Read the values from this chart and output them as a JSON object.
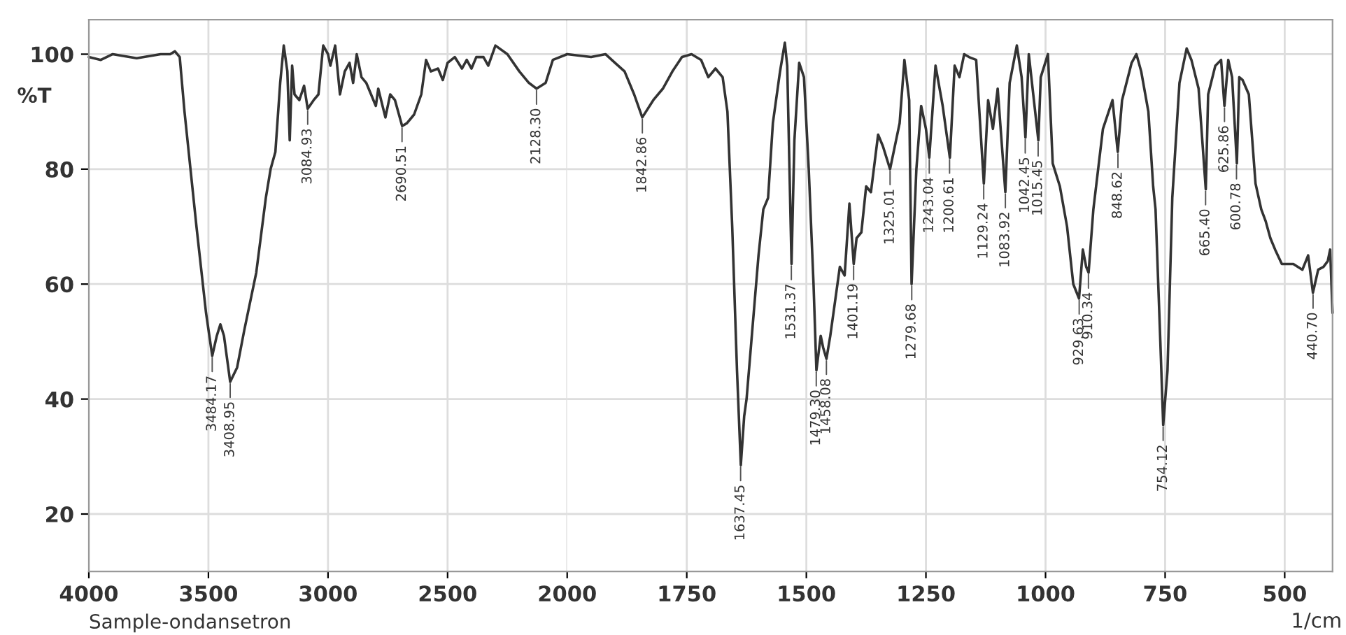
{
  "chart_data": [
    {
      "type": "line",
      "ylabel": "%T",
      "annotations": [
        "Sample-ondansetron",
        {
          "text": "3484.17",
          "x": 3484.17,
          "y": 47.5
        },
        {
          "text": "3408.95",
          "x": 3408.95,
          "y": 43
        },
        {
          "text": "3084.93",
          "x": 3084.93,
          "y": 90.5
        },
        {
          "text": "2690.51",
          "x": 2690.51,
          "y": 87.5
        },
        {
          "text": "2128.30",
          "x": 2128.3,
          "y": 94
        }
      ],
      "xlim": [
        4000,
        2000
      ],
      "ylim": [
        10,
        106
      ],
      "xticks": [
        4000,
        3500,
        3000,
        2500,
        2000
      ],
      "yticks": [
        20,
        40,
        60,
        80,
        100
      ],
      "grid": true,
      "line_style": "solid",
      "series": [
        {
          "color": "#333333",
          "x": [
            4000,
            3950,
            3900,
            3800,
            3700,
            3660,
            3640,
            3620,
            3600,
            3550,
            3510,
            3484,
            3465,
            3450,
            3435,
            3409,
            3380,
            3350,
            3300,
            3260,
            3240,
            3220,
            3200,
            3185,
            3170,
            3160,
            3150,
            3140,
            3120,
            3100,
            3085,
            3060,
            3040,
            3020,
            3000,
            2990,
            2970,
            2950,
            2930,
            2910,
            2895,
            2880,
            2860,
            2840,
            2820,
            2800,
            2790,
            2760,
            2740,
            2720,
            2690,
            2670,
            2640,
            2610,
            2590,
            2570,
            2540,
            2520,
            2500,
            2470,
            2440,
            2420,
            2400,
            2380,
            2350,
            2330,
            2300,
            2250,
            2200,
            2160,
            2128,
            2090,
            2060,
            2000
          ],
          "values": [
            99.5,
            99,
            100,
            99.3,
            100,
            100,
            100.5,
            99.5,
            90,
            70,
            55,
            47.5,
            51,
            53,
            51,
            43,
            45.5,
            52,
            62,
            75,
            80,
            83,
            95,
            101.5,
            97,
            85,
            98,
            93,
            92,
            94.5,
            90.5,
            92,
            93,
            101.5,
            100,
            98,
            101.5,
            93,
            97,
            98.5,
            95,
            100,
            96,
            95,
            93,
            91,
            94,
            89,
            93,
            92,
            87.5,
            88,
            89.5,
            93,
            99,
            97,
            97.5,
            95.5,
            98.5,
            99.5,
            97.5,
            99,
            97.5,
            99.5,
            99.5,
            98,
            101.5,
            100,
            97,
            95,
            94,
            95,
            99,
            100
          ]
        }
      ]
    },
    {
      "type": "line",
      "xlabel": "1/cm",
      "annotations": [
        {
          "text": "1842.86",
          "x": 1842.86,
          "y": 89
        },
        {
          "text": "1637.45",
          "x": 1637.45,
          "y": 28.5
        },
        {
          "text": "1531.37",
          "x": 1531.37,
          "y": 63.5
        },
        {
          "text": "1479.30",
          "x": 1479.3,
          "y": 45
        },
        {
          "text": "1458.08",
          "x": 1458.08,
          "y": 47
        },
        {
          "text": "1401.19",
          "x": 1401.19,
          "y": 63.5
        },
        {
          "text": "1325.01",
          "x": 1325.01,
          "y": 80
        },
        {
          "text": "1279.68",
          "x": 1279.68,
          "y": 60
        },
        {
          "text": "1243.04",
          "x": 1243.04,
          "y": 82
        },
        {
          "text": "1200.61",
          "x": 1200.61,
          "y": 82
        },
        {
          "text": "1129.24",
          "x": 1129.24,
          "y": 77.5
        },
        {
          "text": "1083.92",
          "x": 1083.92,
          "y": 76
        },
        {
          "text": "1042.45",
          "x": 1042.45,
          "y": 85.5
        },
        {
          "text": "1015.45",
          "x": 1015.45,
          "y": 85
        },
        {
          "text": "929.63",
          "x": 929.63,
          "y": 57.5
        },
        {
          "text": "910.34",
          "x": 910.34,
          "y": 62
        },
        {
          "text": "848.62",
          "x": 848.62,
          "y": 83
        },
        {
          "text": "754.12",
          "x": 754.12,
          "y": 35.5
        },
        {
          "text": "665.40",
          "x": 665.4,
          "y": 76.5
        },
        {
          "text": "625.86",
          "x": 625.86,
          "y": 91
        },
        {
          "text": "600.78",
          "x": 600.78,
          "y": 81
        },
        {
          "text": "440.70",
          "x": 440.7,
          "y": 58.5
        }
      ],
      "xlim": [
        2000,
        400
      ],
      "ylim": [
        10,
        106
      ],
      "xticks": [
        1750,
        1500,
        1250,
        1000,
        750,
        500
      ],
      "yticks": [
        20,
        40,
        60,
        80,
        100
      ],
      "tick_labels": "x",
      "grid": true,
      "line_style": "solid",
      "series": [
        {
          "color": "#333333",
          "x": [
            2000,
            1950,
            1920,
            1900,
            1880,
            1860,
            1843,
            1820,
            1800,
            1780,
            1760,
            1740,
            1720,
            1705,
            1690,
            1675,
            1665,
            1655,
            1645,
            1637,
            1630,
            1625,
            1615,
            1600,
            1590,
            1580,
            1570,
            1555,
            1545,
            1540,
            1531,
            1525,
            1515,
            1505,
            1495,
            1485,
            1479,
            1470,
            1465,
            1458,
            1450,
            1440,
            1430,
            1420,
            1410,
            1401,
            1395,
            1385,
            1375,
            1365,
            1350,
            1340,
            1325,
            1315,
            1305,
            1295,
            1285,
            1280,
            1270,
            1260,
            1250,
            1243,
            1230,
            1215,
            1200,
            1190,
            1180,
            1170,
            1160,
            1145,
            1129,
            1120,
            1110,
            1100,
            1084,
            1075,
            1060,
            1050,
            1042,
            1035,
            1015,
            1010,
            995,
            985,
            970,
            955,
            942,
            930,
            922,
            915,
            910,
            900,
            880,
            860,
            849,
            840,
            820,
            810,
            800,
            785,
            775,
            770,
            760,
            754,
            745,
            735,
            720,
            705,
            695,
            680,
            665,
            660,
            645,
            633,
            626,
            618,
            610,
            600,
            595,
            588,
            575,
            561,
            549,
            540,
            530,
            520,
            506,
            490,
            482,
            463,
            451,
            441,
            430,
            419,
            410,
            405,
            400
          ],
          "values": [
            100,
            99.5,
            100,
            98.5,
            97,
            93,
            89,
            92,
            94,
            97,
            99.5,
            100,
            99,
            96,
            97.5,
            96,
            90,
            70,
            45,
            28.5,
            37,
            40,
            50,
            65,
            73,
            75,
            88,
            97,
            102,
            98,
            63.5,
            85,
            98.5,
            96,
            80,
            60,
            45,
            51,
            49,
            47,
            51,
            57,
            63,
            61.5,
            74,
            63.5,
            68,
            69,
            77,
            76,
            86,
            84,
            80,
            84,
            88,
            99,
            92,
            60,
            80,
            91,
            87,
            82,
            98,
            91,
            82,
            98,
            96,
            100,
            99.5,
            99,
            77.5,
            92,
            87,
            94,
            76,
            95,
            101.5,
            96,
            85.5,
            100,
            85,
            96,
            100,
            81,
            77,
            70,
            60,
            57.5,
            66,
            63,
            62,
            73,
            87,
            92,
            83,
            92,
            98.5,
            100,
            97,
            90,
            77,
            73,
            50,
            35.5,
            45,
            75,
            95,
            101,
            99,
            94,
            76.5,
            93,
            98,
            99,
            91,
            99,
            96,
            81,
            96,
            95.5,
            93,
            77.5,
            73,
            71,
            68,
            66,
            63.5,
            63.5,
            63.5,
            62.5,
            65,
            58.5,
            62.5,
            63,
            64,
            66,
            55
          ]
        }
      ]
    }
  ]
}
